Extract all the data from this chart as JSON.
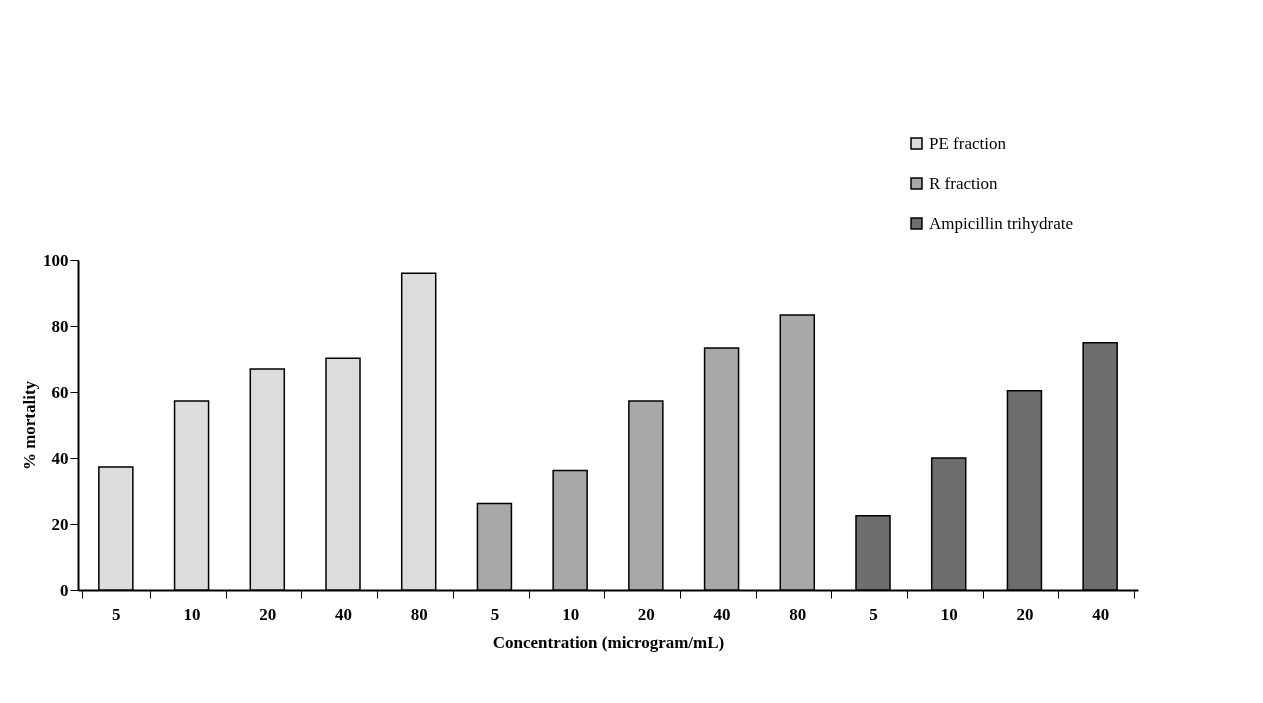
{
  "chart_data": {
    "type": "bar",
    "xlabel": "Concentration (microgram/mL)",
    "ylabel": "% mortality",
    "categories": [
      "5",
      "10",
      "20",
      "40",
      "80",
      "5",
      "10",
      "20",
      "40",
      "80",
      "5",
      "10",
      "20",
      "40"
    ],
    "series": [
      {
        "name": "PE fraction",
        "color": "#dcdcdc",
        "values": [
          37.3,
          57.3,
          67,
          70.2,
          96,
          null,
          null,
          null,
          null,
          null,
          null,
          null,
          null,
          null
        ]
      },
      {
        "name": "R fraction",
        "color": "#a8a8a8",
        "values": [
          null,
          null,
          null,
          null,
          null,
          26.2,
          36.2,
          57.3,
          73.3,
          83.3,
          null,
          null,
          null,
          null
        ]
      },
      {
        "name": "Ampicillin trihydrate",
        "color": "#6e6e6e",
        "values": [
          null,
          null,
          null,
          null,
          null,
          null,
          null,
          null,
          null,
          null,
          22.5,
          40,
          60.4,
          74.9
        ]
      }
    ],
    "ylim": [
      0,
      100
    ],
    "yticks": [
      0,
      20,
      40,
      60,
      80,
      100
    ],
    "grid": false,
    "legend": "top right"
  }
}
